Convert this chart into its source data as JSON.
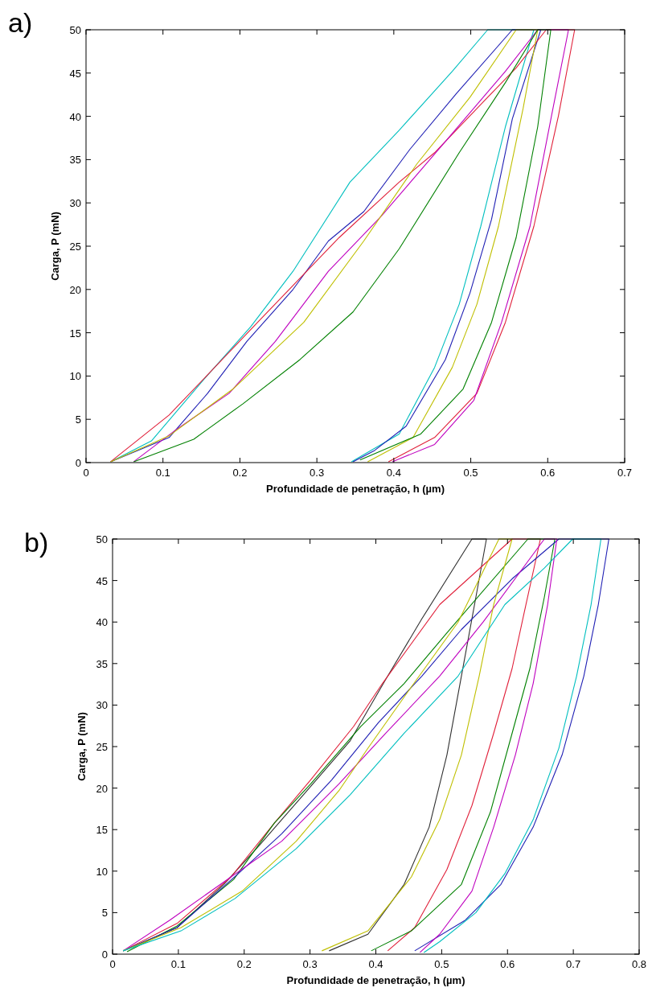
{
  "chart_data": [
    {
      "type": "line",
      "title": "a)",
      "xlabel": "Profundidade de penetração, h (µm)",
      "ylabel": "Carga, P (mN)",
      "xlim": [
        0,
        0.7
      ],
      "ylim": [
        0,
        50
      ],
      "xticks": [
        0,
        0.1,
        0.2,
        0.3,
        0.4,
        0.5,
        0.6,
        0.7
      ],
      "yticks": [
        0,
        5,
        10,
        15,
        20,
        25,
        30,
        35,
        40,
        45,
        50
      ],
      "line_style": "solid",
      "marker": "none",
      "series": [
        {
          "color": "#00bfbf",
          "x": [
            0.032,
            0.085,
            0.154,
            0.214,
            0.269,
            0.343,
            0.407,
            0.476,
            0.522,
            0.582,
            0.545,
            0.513,
            0.485,
            0.453,
            0.407,
            0.345
          ],
          "values": [
            0.1,
            2.5,
            9.7,
            15.7,
            22.1,
            32.4,
            38.4,
            45.2,
            50,
            50,
            38.8,
            27.3,
            18.3,
            11.0,
            3.3,
            0.1
          ]
        },
        {
          "color": "#1f1fb4",
          "x": [
            0.032,
            0.108,
            0.158,
            0.209,
            0.269,
            0.315,
            0.361,
            0.421,
            0.481,
            0.554,
            0.591,
            0.554,
            0.527,
            0.499,
            0.467,
            0.416,
            0.375,
            0.347
          ],
          "values": [
            0.1,
            2.9,
            8.0,
            14.0,
            20.0,
            25.6,
            29.0,
            36.2,
            42.6,
            50,
            50,
            39.7,
            28.1,
            19.6,
            11.9,
            4.2,
            1.4,
            0.1
          ]
        },
        {
          "color": "#e0203a",
          "x": [
            0.032,
            0.108,
            0.163,
            0.223,
            0.278,
            0.329,
            0.407,
            0.453,
            0.522,
            0.559,
            0.598,
            0.635,
            0.614,
            0.582,
            0.545,
            0.508,
            0.453,
            0.393
          ],
          "values": [
            0.1,
            5.5,
            10.6,
            16.2,
            21.3,
            26.0,
            32.4,
            35.8,
            42.2,
            45.6,
            50,
            50,
            40.1,
            27.3,
            16.2,
            8.0,
            2.9,
            0.1
          ]
        },
        {
          "color": "#bf00bf",
          "x": [
            0.062,
            0.117,
            0.186,
            0.246,
            0.315,
            0.384,
            0.467,
            0.545,
            0.587,
            0.627,
            0.605,
            0.577,
            0.54,
            0.504,
            0.453,
            0.398
          ],
          "values": [
            0.1,
            3.8,
            8.0,
            14.0,
            22.1,
            28.5,
            37.1,
            45.2,
            50,
            50,
            40.1,
            27.3,
            16.2,
            7.2,
            2.1,
            0.1
          ]
        },
        {
          "color": "#bfbf00",
          "x": [
            0.032,
            0.108,
            0.191,
            0.283,
            0.361,
            0.43,
            0.499,
            0.559,
            0.587,
            0.568,
            0.536,
            0.508,
            0.476,
            0.425,
            0.366
          ],
          "values": [
            0.1,
            3.1,
            8.5,
            16.2,
            25.6,
            34.5,
            42.2,
            50,
            50,
            40.9,
            27.3,
            18.3,
            11.0,
            2.9,
            0.1
          ]
        },
        {
          "color": "#008000",
          "x": [
            0.062,
            0.14,
            0.204,
            0.278,
            0.347,
            0.407,
            0.485,
            0.545,
            0.587,
            0.604,
            0.587,
            0.559,
            0.527,
            0.49,
            0.435,
            0.356
          ],
          "values": [
            0.1,
            2.7,
            6.8,
            11.9,
            17.4,
            24.7,
            35.8,
            43.9,
            50,
            50,
            38.8,
            26.0,
            16.2,
            8.5,
            3.3,
            0.3
          ]
        }
      ]
    },
    {
      "type": "line",
      "title": "b)",
      "xlabel": "Profundidade de penetração, h (µm)",
      "ylabel": "Carga, P (mN)",
      "xlim": [
        0,
        0.8
      ],
      "ylim": [
        0,
        50
      ],
      "xticks": [
        0,
        0.1,
        0.2,
        0.3,
        0.4,
        0.5,
        0.6,
        0.7,
        0.8
      ],
      "yticks": [
        0,
        5,
        10,
        15,
        20,
        25,
        30,
        35,
        40,
        45,
        50
      ],
      "line_style": "solid",
      "marker": "none",
      "series": [
        {
          "color": "#303030",
          "x": [
            0.016,
            0.098,
            0.169,
            0.224,
            0.29,
            0.361,
            0.415,
            0.47,
            0.546,
            0.568,
            0.552,
            0.53,
            0.508,
            0.481,
            0.443,
            0.388,
            0.329
          ],
          "values": [
            0.4,
            3.2,
            8.4,
            13.2,
            19.2,
            25.7,
            33.1,
            40.4,
            50,
            50,
            43.0,
            33.5,
            24.0,
            15.3,
            8.4,
            2.4,
            0.4
          ]
        },
        {
          "color": "#e0203a",
          "x": [
            0.016,
            0.098,
            0.18,
            0.246,
            0.301,
            0.366,
            0.41,
            0.497,
            0.607,
            0.65,
            0.628,
            0.607,
            0.579,
            0.546,
            0.508,
            0.459,
            0.418
          ],
          "values": [
            0.4,
            3.7,
            9.3,
            15.8,
            21.0,
            27.4,
            32.6,
            42.1,
            50,
            50,
            42.1,
            34.4,
            26.6,
            17.9,
            10.2,
            3.2,
            0.4
          ]
        },
        {
          "color": "#008000",
          "x": [
            0.022,
            0.098,
            0.184,
            0.246,
            0.301,
            0.377,
            0.443,
            0.508,
            0.631,
            0.672,
            0.656,
            0.634,
            0.607,
            0.574,
            0.53,
            0.454,
            0.393
          ],
          "values": [
            0.3,
            3.4,
            9.0,
            15.8,
            20.5,
            27.4,
            32.6,
            38.7,
            50,
            50,
            43.0,
            34.4,
            26.6,
            17.1,
            8.4,
            2.8,
            0.4
          ]
        },
        {
          "color": "#1f1fb4",
          "x": [
            0.016,
            0.098,
            0.191,
            0.257,
            0.333,
            0.404,
            0.47,
            0.53,
            0.607,
            0.678,
            0.754,
            0.738,
            0.716,
            0.683,
            0.639,
            0.59,
            0.536,
            0.459
          ],
          "values": [
            0.4,
            3.2,
            9.7,
            14.5,
            21.0,
            27.9,
            33.5,
            39.1,
            45.2,
            50,
            50,
            42.1,
            33.5,
            24.0,
            15.3,
            8.4,
            4.1,
            0.4
          ]
        },
        {
          "color": "#bf00bf",
          "x": [
            0.016,
            0.087,
            0.18,
            0.257,
            0.344,
            0.415,
            0.497,
            0.563,
            0.656,
            0.675,
            0.661,
            0.639,
            0.612,
            0.579,
            0.546,
            0.497,
            0.467
          ],
          "values": [
            0.4,
            4.1,
            9.3,
            13.6,
            20.5,
            26.6,
            33.5,
            40.0,
            50,
            50,
            42.1,
            32.6,
            24.0,
            15.3,
            7.6,
            2.4,
            0.2
          ]
        },
        {
          "color": "#bfbf00",
          "x": [
            0.016,
            0.104,
            0.197,
            0.279,
            0.344,
            0.388,
            0.454,
            0.525,
            0.587,
            0.607,
            0.579,
            0.557,
            0.53,
            0.497,
            0.454,
            0.388,
            0.318
          ],
          "values": [
            0.4,
            3.2,
            7.6,
            13.6,
            19.7,
            24.8,
            32.2,
            40.0,
            50,
            50,
            42.1,
            33.5,
            24.0,
            16.2,
            9.3,
            2.8,
            0.4
          ]
        },
        {
          "color": "#00bfbf",
          "x": [
            0.016,
            0.104,
            0.186,
            0.279,
            0.361,
            0.443,
            0.525,
            0.596,
            0.656,
            0.699,
            0.742,
            0.727,
            0.705,
            0.678,
            0.639,
            0.596,
            0.552,
            0.497,
            0.473
          ],
          "values": [
            0.4,
            2.8,
            6.7,
            12.7,
            19.2,
            26.6,
            33.5,
            42.1,
            46.5,
            50,
            50,
            42.1,
            33.5,
            24.8,
            16.2,
            9.7,
            5.0,
            1.5,
            0.2
          ]
        }
      ]
    }
  ]
}
